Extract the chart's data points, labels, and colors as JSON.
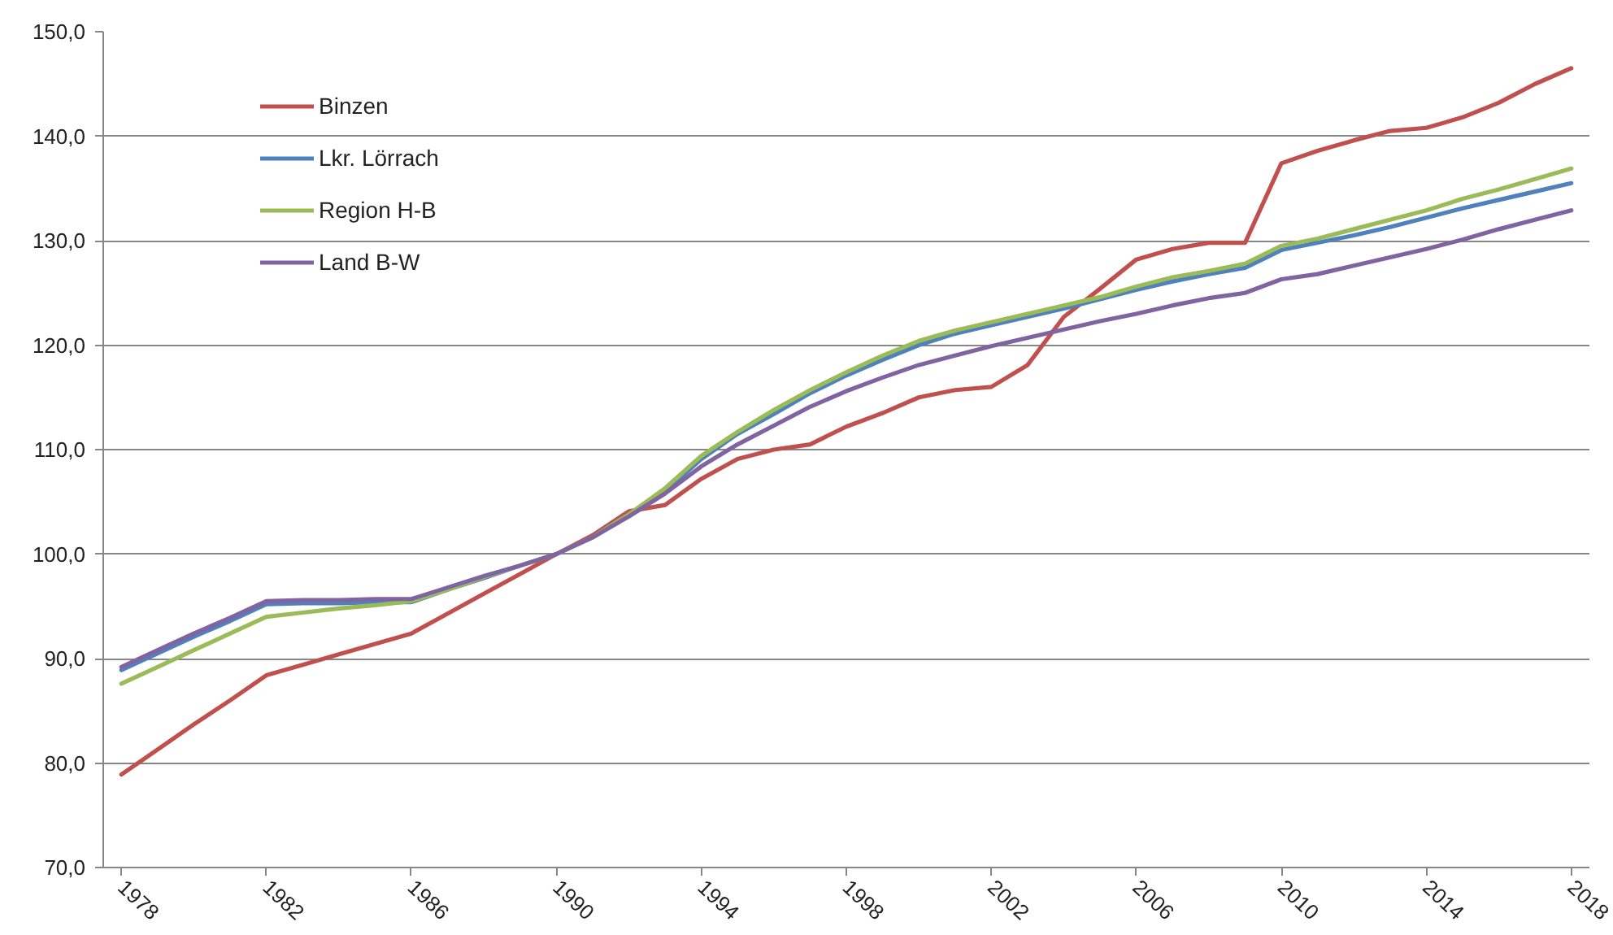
{
  "chart_data": {
    "type": "line",
    "x": [
      1978,
      1979,
      1980,
      1981,
      1982,
      1983,
      1984,
      1985,
      1986,
      1987,
      1988,
      1989,
      1990,
      1991,
      1992,
      1993,
      1994,
      1995,
      1996,
      1997,
      1998,
      1999,
      2000,
      2001,
      2002,
      2003,
      2004,
      2005,
      2006,
      2007,
      2008,
      2009,
      2010,
      2011,
      2012,
      2013,
      2014,
      2015,
      2016,
      2017,
      2018
    ],
    "series": [
      {
        "name": "Binzen",
        "color": "#c0504d",
        "values": [
          78.9,
          81.3,
          83.7,
          86.0,
          88.4,
          89.4,
          90.4,
          91.4,
          92.4,
          94.3,
          96.2,
          98.1,
          100.0,
          101.8,
          104.1,
          104.7,
          107.2,
          109.1,
          110.0,
          110.5,
          112.2,
          113.5,
          115.0,
          115.7,
          116.0,
          118.1,
          122.7,
          125.4,
          128.2,
          129.2,
          129.8,
          129.8,
          137.4,
          138.6,
          139.6,
          140.5,
          140.8,
          141.8,
          143.2,
          145.0,
          146.5
        ]
      },
      {
        "name": "Lkr. Lörrach",
        "color": "#4f81bd",
        "values": [
          88.9,
          90.5,
          92.1,
          93.6,
          95.2,
          95.3,
          95.3,
          95.4,
          95.4,
          96.6,
          97.7,
          98.9,
          100.0,
          101.6,
          103.8,
          106.0,
          109.1,
          111.5,
          113.4,
          115.4,
          117.1,
          118.6,
          120.0,
          121.1,
          121.9,
          122.7,
          123.5,
          124.4,
          125.3,
          126.1,
          126.8,
          127.4,
          129.1,
          129.8,
          130.5,
          131.3,
          132.2,
          133.1,
          133.9,
          134.7,
          135.5
        ]
      },
      {
        "name": "Region H-B",
        "color": "#9bbb59",
        "values": [
          87.6,
          89.2,
          90.8,
          92.4,
          94.0,
          94.4,
          94.8,
          95.1,
          95.5,
          96.6,
          97.8,
          98.9,
          100.0,
          101.6,
          103.8,
          106.3,
          109.4,
          111.7,
          113.8,
          115.7,
          117.4,
          119.0,
          120.4,
          121.4,
          122.2,
          123.0,
          123.8,
          124.6,
          125.6,
          126.5,
          127.1,
          127.8,
          129.5,
          130.2,
          131.1,
          132.0,
          132.9,
          134.0,
          134.9,
          135.9,
          136.9
        ]
      },
      {
        "name": "Land B-W",
        "color": "#8064a2",
        "values": [
          89.2,
          90.8,
          92.4,
          93.9,
          95.5,
          95.6,
          95.6,
          95.7,
          95.7,
          96.8,
          97.9,
          98.9,
          100.0,
          101.6,
          103.6,
          105.8,
          108.4,
          110.5,
          112.3,
          114.1,
          115.6,
          116.9,
          118.1,
          119.0,
          119.9,
          120.7,
          121.5,
          122.3,
          123.0,
          123.8,
          124.5,
          125.0,
          126.3,
          126.8,
          127.6,
          128.4,
          129.2,
          130.1,
          131.1,
          132.0,
          132.9
        ]
      }
    ],
    "xlim": [
      1977.5,
      2018.5
    ],
    "xticks": [
      1978,
      1982,
      1986,
      1990,
      1994,
      1998,
      2002,
      2006,
      2010,
      2014,
      2018
    ],
    "ylim": [
      70,
      150
    ],
    "yticks": [
      {
        "value": 70,
        "label": "70,0"
      },
      {
        "value": 80,
        "label": "80,0"
      },
      {
        "value": 90,
        "label": "90,0"
      },
      {
        "value": 100,
        "label": "100,0"
      },
      {
        "value": 110,
        "label": "110,0"
      },
      {
        "value": 120,
        "label": "120,0"
      },
      {
        "value": 130,
        "label": "130,0"
      },
      {
        "value": 140,
        "label": "140,0"
      },
      {
        "value": 150,
        "label": "150,0"
      }
    ],
    "grid": "y",
    "legend": "top left"
  }
}
